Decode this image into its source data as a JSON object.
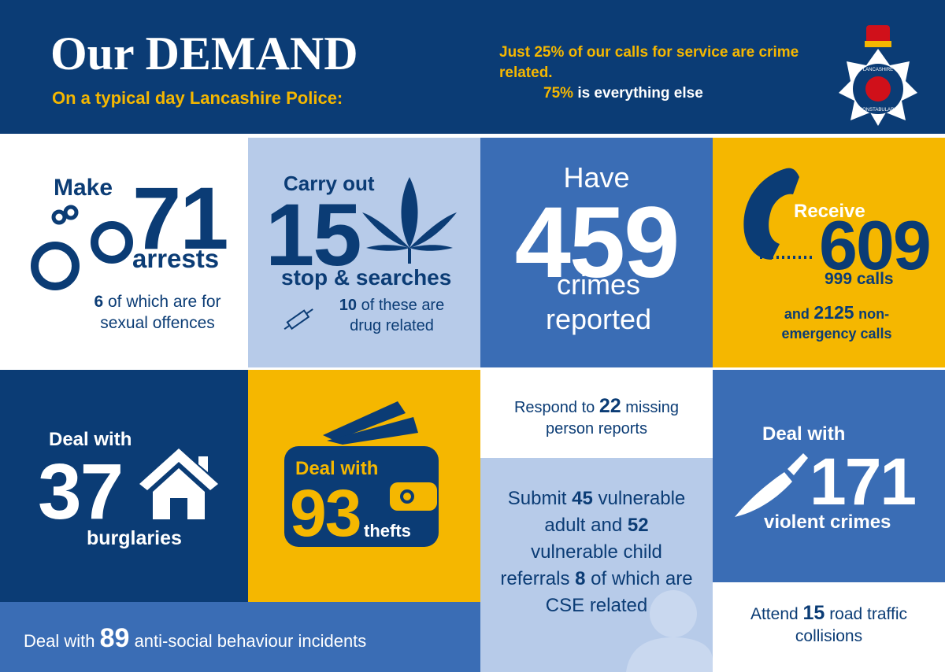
{
  "header": {
    "title": "Our DEMAND",
    "subtitle": "On a typical day Lancashire Police:",
    "note_line": "Just 25% of our calls for service are crime related.",
    "note_percent": "75%",
    "note_rest": "is everything else",
    "badge_top": "LANCASHIRE",
    "badge_bottom": "CONSTABULARY"
  },
  "tiles": {
    "arrests": {
      "lead": "Make",
      "number": 71,
      "unit": "arrests",
      "sub_number": 6,
      "sub_text": "of which are for sexual offences"
    },
    "searches": {
      "lead": "Carry out",
      "number": 15,
      "unit": "stop & searches",
      "sub_number": 10,
      "sub_text": "of these are drug related"
    },
    "crimes": {
      "lead": "Have",
      "number": 459,
      "unit": "crimes reported"
    },
    "calls": {
      "lead": "Receive",
      "number": 609,
      "unit": "999 calls",
      "sub_lead": "and",
      "sub_number": 2125,
      "sub_text": "non-emergency calls"
    },
    "burglaries": {
      "lead": "Deal with",
      "number": 37,
      "unit": "burglaries"
    },
    "thefts": {
      "lead": "Deal with",
      "number": 93,
      "unit": "thefts"
    },
    "missing": {
      "lead": "Respond to",
      "number": 22,
      "text": "missing person reports"
    },
    "referrals": {
      "lead": "Submit",
      "adult_number": 45,
      "adult_text": "vulnerable adult and",
      "child_number": 52,
      "child_text": "vulnerable child referrals",
      "cse_number": 8,
      "cse_text": "of which are CSE related"
    },
    "violent": {
      "lead": "Deal with",
      "number": 171,
      "unit": "violent crimes"
    },
    "collisions": {
      "lead": "Attend",
      "number": 15,
      "text": "road traffic collisions"
    },
    "asb": {
      "lead": "Deal with",
      "number": 89,
      "text": "anti-social behaviour incidents"
    }
  }
}
